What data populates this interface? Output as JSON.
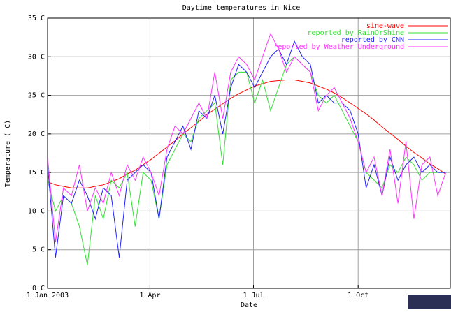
{
  "chart_data": {
    "type": "line",
    "title": "Daytime temperatures in Nice",
    "x_label": "Date",
    "y_label": "Temperature ( C)",
    "x": [
      0,
      7,
      14,
      21,
      28,
      35,
      42,
      49,
      56,
      63,
      70,
      77,
      84,
      91,
      98,
      105,
      112,
      119,
      126,
      133,
      140,
      147,
      154,
      161,
      168,
      175,
      182,
      189,
      196,
      203,
      210,
      217,
      224,
      231,
      238,
      245,
      252,
      259,
      266,
      273,
      280,
      287,
      294,
      301,
      308,
      315,
      322,
      329,
      336,
      343,
      350
    ],
    "xlim": [
      0,
      354
    ],
    "xticks": [
      {
        "value": 0,
        "label": "1 Jan 2003"
      },
      {
        "value": 90,
        "label": "1 Apr"
      },
      {
        "value": 181,
        "label": "1 Jul"
      },
      {
        "value": 273,
        "label": "1 Oct"
      }
    ],
    "ylim": [
      0,
      35
    ],
    "yticks": [
      {
        "value": 0,
        "label": "0 C"
      },
      {
        "value": 5,
        "label": "5 C"
      },
      {
        "value": 10,
        "label": "10 C"
      },
      {
        "value": 15,
        "label": "15 C"
      },
      {
        "value": 20,
        "label": "20 C"
      },
      {
        "value": 25,
        "label": "25 C"
      },
      {
        "value": 30,
        "label": "30 C"
      },
      {
        "value": 35,
        "label": "35 C"
      }
    ],
    "grid": true,
    "legend": "top-right",
    "series": [
      {
        "name": "sine-wave",
        "color": "#ff0000",
        "values": [
          13.8,
          13.4,
          13.2,
          13.0,
          13.0,
          13.0,
          13.2,
          13.4,
          13.8,
          14.2,
          14.8,
          15.3,
          16.0,
          16.7,
          17.5,
          18.3,
          19.1,
          20.0,
          20.8,
          21.6,
          22.5,
          23.2,
          23.9,
          24.6,
          25.2,
          25.7,
          26.2,
          26.5,
          26.8,
          26.9,
          27.0,
          27.0,
          26.8,
          26.6,
          26.2,
          25.8,
          25.3,
          24.7,
          24.0,
          23.3,
          22.6,
          21.8,
          20.9,
          20.1,
          19.3,
          18.4,
          17.6,
          16.9,
          16.1,
          15.5,
          14.8
        ]
      },
      {
        "name": "reported by RainOrShine",
        "color": "#33e033",
        "values": [
          14,
          10,
          12,
          11,
          8,
          3,
          12,
          9,
          14,
          13,
          15,
          8,
          15,
          14,
          9,
          16,
          18,
          20,
          19,
          22,
          23,
          24,
          16,
          27,
          28,
          28,
          24,
          27,
          23,
          26,
          29,
          30,
          29,
          28,
          25,
          24,
          25,
          23,
          21,
          19,
          15,
          14,
          13,
          16,
          15,
          17,
          16,
          14,
          15,
          15,
          15
        ]
      },
      {
        "name": "reported by CNN",
        "color": "#2222ff",
        "values": [
          16,
          4,
          12,
          11,
          14,
          12,
          9,
          13,
          12,
          4,
          14,
          15,
          16,
          15,
          9,
          17,
          19,
          21,
          18,
          23,
          22,
          25,
          20,
          26,
          29,
          28,
          26,
          28,
          30,
          31,
          29,
          32,
          30,
          29,
          24,
          25,
          24,
          24,
          23,
          20,
          13,
          16,
          12,
          17,
          14,
          16,
          17,
          15,
          16,
          15,
          15
        ]
      },
      {
        "name": "reported by Weather Underground",
        "color": "#ff33ff",
        "values": [
          17,
          6,
          13,
          12,
          16,
          10,
          13,
          11,
          15,
          12,
          16,
          14,
          17,
          15,
          12,
          18,
          21,
          20,
          22,
          24,
          22,
          28,
          22,
          28,
          30,
          29,
          27,
          30,
          33,
          31,
          28,
          30,
          29,
          28,
          23,
          25,
          26,
          24,
          22,
          19,
          15,
          17,
          12,
          18,
          11,
          19,
          9,
          16,
          17,
          12,
          15
        ]
      }
    ]
  }
}
